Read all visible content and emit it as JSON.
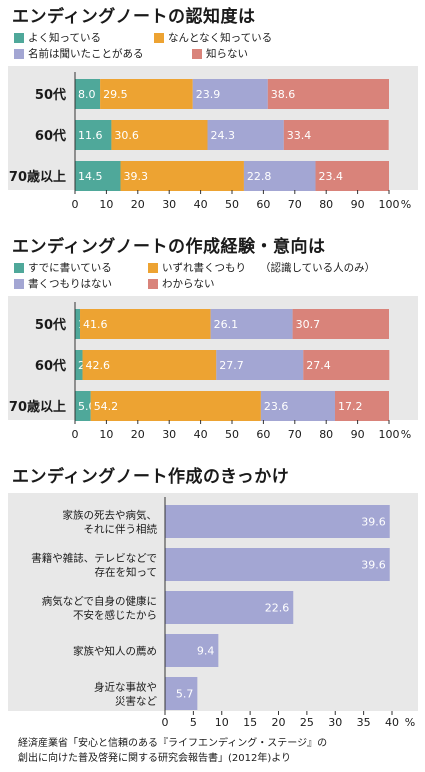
{
  "charts": [
    {
      "title": "エンディングノートの認知度は",
      "legend": [
        {
          "label": "よく知っている",
          "color": "#4fa89a"
        },
        {
          "label": "なんとなく知っている",
          "color": "#eda332"
        },
        {
          "label": "名前は聞いたことがある",
          "color": "#a3a6d3"
        },
        {
          "label": "知らない",
          "color": "#d9837a"
        }
      ],
      "note": ""
    },
    {
      "title": "エンディングノートの作成経験・意向は",
      "legend": [
        {
          "label": "すでに書いている",
          "color": "#4fa89a"
        },
        {
          "label": "いずれ書くつもり",
          "color": "#eda332"
        },
        {
          "label": "書くつもりはない",
          "color": "#a3a6d3"
        },
        {
          "label": "わからない",
          "color": "#d9837a"
        }
      ],
      "note": "（認識している人のみ）"
    },
    {
      "title": "エンディングノート作成のきっかけ",
      "legend": [],
      "note": ""
    }
  ],
  "chart_data": [
    {
      "type": "bar",
      "stacked": true,
      "orientation": "horizontal",
      "title": "エンディングノートの認知度は",
      "categories": [
        "50代",
        "60代",
        "70歳以上"
      ],
      "series": [
        {
          "name": "よく知っている",
          "values": [
            8.0,
            11.6,
            14.5
          ],
          "color": "#4fa89a"
        },
        {
          "name": "なんとなく知っている",
          "values": [
            29.5,
            30.6,
            39.3
          ],
          "color": "#eda332"
        },
        {
          "name": "名前は聞いたことがある",
          "values": [
            23.9,
            24.3,
            22.8
          ],
          "color": "#a3a6d3"
        },
        {
          "name": "知らない",
          "values": [
            38.6,
            33.4,
            23.4
          ],
          "color": "#d9837a"
        }
      ],
      "xlim": [
        0,
        100
      ],
      "xticks": [
        "0",
        "10",
        "20",
        "30",
        "40",
        "50",
        "60",
        "70",
        "80",
        "90",
        "100"
      ],
      "unit": "%"
    },
    {
      "type": "bar",
      "stacked": true,
      "orientation": "horizontal",
      "title": "エンディングノートの作成経験・意向は",
      "categories": [
        "50代",
        "60代",
        "70歳以上"
      ],
      "series": [
        {
          "name": "すでに書いている",
          "values": [
            1.6,
            2.4,
            5.0
          ],
          "color": "#4fa89a"
        },
        {
          "name": "いずれ書くつもり",
          "values": [
            41.6,
            42.6,
            54.2
          ],
          "color": "#eda332"
        },
        {
          "name": "書くつもりはない",
          "values": [
            26.1,
            27.7,
            23.6
          ],
          "color": "#a3a6d3"
        },
        {
          "name": "わからない",
          "values": [
            30.7,
            27.4,
            17.2
          ],
          "color": "#d9837a"
        }
      ],
      "xlim": [
        0,
        100
      ],
      "xticks": [
        "0",
        "10",
        "20",
        "30",
        "40",
        "50",
        "60",
        "70",
        "80",
        "90",
        "100"
      ],
      "unit": "%"
    },
    {
      "type": "bar",
      "orientation": "horizontal",
      "title": "エンディングノート作成のきっかけ",
      "categories": [
        [
          "家族の死去や病気、",
          "それに伴う相続"
        ],
        [
          "書籍や雑誌、テレビなどで",
          "存在を知って"
        ],
        [
          "病気などで自身の健康に",
          "不安を感じたから"
        ],
        [
          "家族や知人の薦め"
        ],
        [
          "身近な事故や",
          "災害など"
        ]
      ],
      "values": [
        39.6,
        39.6,
        22.6,
        9.4,
        5.7
      ],
      "color": "#a3a6d3",
      "xlim": [
        0,
        40
      ],
      "xticks": [
        "0",
        "5",
        "10",
        "15",
        "20",
        "25",
        "30",
        "35",
        "40"
      ],
      "unit": "%"
    }
  ],
  "source": [
    "経済産業省「安心と信頼のある『ライフエンディング・ステージ』の",
    "創出に向けた普及啓発に関する研究会報告書」(2012年)より"
  ]
}
